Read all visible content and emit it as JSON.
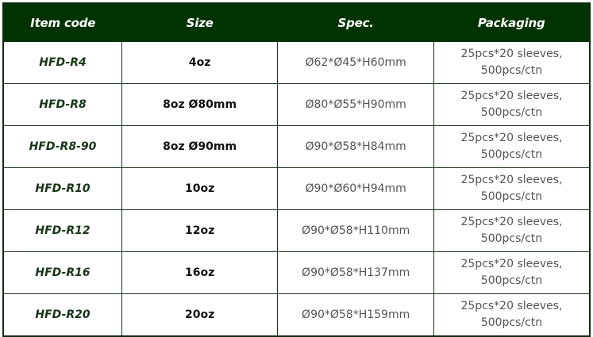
{
  "colors": {
    "header_bg": "#003300",
    "border": "#1a331a",
    "code_text": "#173617"
  },
  "headers": [
    "Item code",
    "Size",
    "Spec.",
    "Packaging"
  ],
  "rows": [
    {
      "code": "HFD-R4",
      "size": "4oz",
      "spec": "Ø62*Ø45*H60mm",
      "pack1": "25pcs*20 sleeves,",
      "pack2": "500pcs/ctn"
    },
    {
      "code": "HFD-R8",
      "size": "8oz Ø80mm",
      "spec": "Ø80*Ø55*H90mm",
      "pack1": "25pcs*20 sleeves,",
      "pack2": "500pcs/ctn"
    },
    {
      "code": "HFD-R8-90",
      "size": "8oz Ø90mm",
      "spec": "Ø90*Ø58*H84mm",
      "pack1": "25pcs*20 sleeves,",
      "pack2": "500pcs/ctn"
    },
    {
      "code": "HFD-R10",
      "size": "10oz",
      "spec": "Ø90*Ø60*H94mm",
      "pack1": "25pcs*20 sleeves,",
      "pack2": "500pcs/ctn"
    },
    {
      "code": "HFD-R12",
      "size": "12oz",
      "spec": "Ø90*Ø58*H110mm",
      "pack1": "25pcs*20 sleeves,",
      "pack2": "500pcs/ctn"
    },
    {
      "code": "HFD-R16",
      "size": "16oz",
      "spec": "Ø90*Ø58*H137mm",
      "pack1": "25pcs*20 sleeves,",
      "pack2": "500pcs/ctn"
    },
    {
      "code": "HFD-R20",
      "size": "20oz",
      "spec": "Ø90*Ø58*H159mm",
      "pack1": "25pcs*20 sleeves,",
      "pack2": "500pcs/ctn"
    }
  ]
}
